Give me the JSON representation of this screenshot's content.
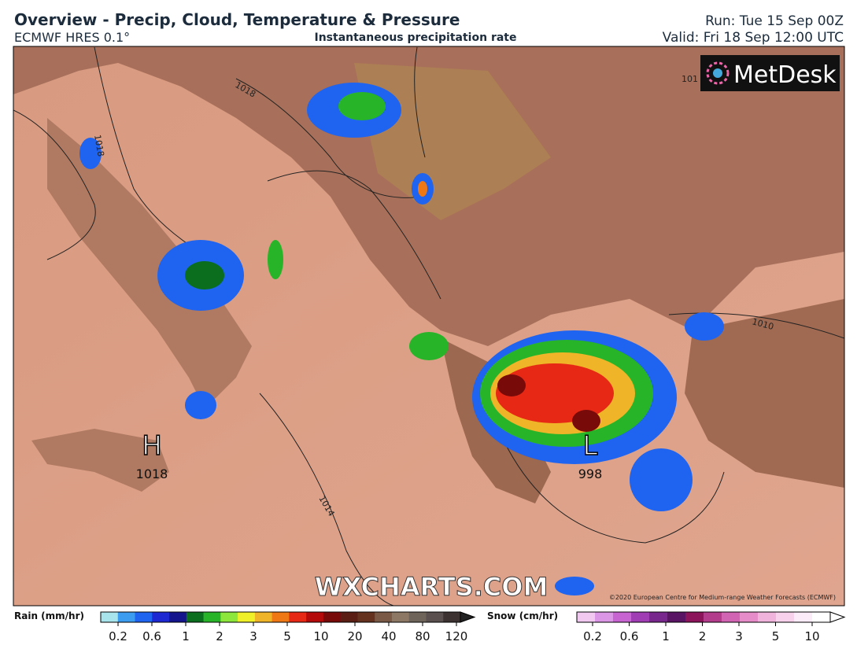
{
  "header": {
    "title": "Overview - Precip, Cloud, Temperature & Pressure",
    "model": "ECMWF HRES 0.1°",
    "subtitle": "Instantaneous precipitation rate",
    "run": "Run: Tue 15 Sep 00Z",
    "valid": "Valid: Fri 18 Sep 12:00 UTC"
  },
  "map": {
    "logo": "MetDesk",
    "watermark": "WXCHARTS.COM",
    "copyright": "©2020 European Centre for Medium-range Weather Forecasts (ECMWF)",
    "isobar_labels": [
      "1018",
      "1018",
      "1014",
      "1010",
      "101"
    ],
    "pressure_centers": [
      {
        "symbol": "H",
        "value": "1018"
      },
      {
        "symbol": "L",
        "value": "998"
      }
    ]
  },
  "legend": {
    "rain": {
      "title": "Rain (mm/hr)",
      "labels": [
        "0.2",
        "0.6",
        "1",
        "2",
        "3",
        "5",
        "10",
        "20",
        "40",
        "80",
        "120"
      ],
      "colors": [
        "#a8e4ec",
        "#3c9cf0",
        "#1e64f0",
        "#1e28d2",
        "#14148c",
        "#0a6e1e",
        "#28b428",
        "#8ce63c",
        "#f0f028",
        "#f0b428",
        "#f07814",
        "#e62814",
        "#b40a0a",
        "#780a0a",
        "#5a1e14",
        "#64321e",
        "#7a5a46",
        "#8c7864",
        "#6e645a",
        "#5a5050",
        "#3c3232"
      ]
    },
    "snow": {
      "title": "Snow (cm/hr)",
      "labels": [
        "0.2",
        "0.6",
        "1",
        "2",
        "3",
        "5",
        "10"
      ],
      "colors": [
        "#f0c8f0",
        "#dc96e6",
        "#c864d2",
        "#a03cb4",
        "#78288c",
        "#5a1464",
        "#8c145a",
        "#b43c8c",
        "#d264b4",
        "#e68cc8",
        "#f0b4dc",
        "#f8d2ec",
        "#fcebf8",
        "#ffffff"
      ]
    }
  }
}
